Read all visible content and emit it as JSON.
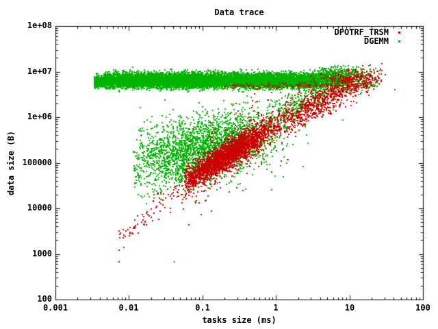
{
  "chart_data": {
    "type": "scatter",
    "title": "Data trace",
    "xlabel": "tasks size (ms)",
    "ylabel": "data size (B)",
    "xscale": "log",
    "yscale": "log",
    "xlim": [
      0.001,
      100
    ],
    "ylim": [
      100,
      100000000
    ],
    "grid": false,
    "xticks": [
      "0.001",
      "0.01",
      "0.1",
      "1",
      "10",
      "100"
    ],
    "yticks_top_to_bottom": [
      "1e+08",
      "1e+07",
      "1e+06",
      "100000",
      "10000",
      "1000",
      "100"
    ],
    "legend": {
      "position": "top-right-inside",
      "entries": [
        {
          "label": "DPOTRF_TRSM",
          "color": "#cc0000",
          "marker": "dot"
        },
        {
          "label": "DGEMM",
          "color": "#00b400",
          "marker": "dot"
        }
      ]
    },
    "series": [
      {
        "name": "DGEMM",
        "color": "#00b400",
        "marker": "dot",
        "trend_log10": [
          [
            -0.2,
            5.9
          ],
          [
            0.95,
            6.76
          ]
        ],
        "clusters": [
          {
            "kind": "bandx",
            "n": 13000,
            "x": [
              -2.35,
              0.55
            ],
            "cy": 6.82,
            "sy": 0.075,
            "clipy": [
              6.55,
              7.12
            ]
          },
          {
            "kind": "bandx",
            "n": 350,
            "x": [
              -2.48,
              -2.35
            ],
            "cy": 6.8,
            "sy": 0.06,
            "clipy": [
              6.6,
              7.0
            ]
          },
          {
            "kind": "gauss",
            "n": 900,
            "cx": 0.55,
            "cy": 6.86,
            "sx": 0.35,
            "sy": 0.11,
            "corr": 0,
            "clipx": [
              0.55,
              1.42
            ],
            "clipy": [
              6.5,
              7.15
            ]
          },
          {
            "kind": "gauss",
            "n": 2600,
            "cx": -1.05,
            "cy": 5.3,
            "sx": 0.52,
            "sy": 0.42,
            "corr": 0.45,
            "clipx": [
              -1.95,
              0.9
            ],
            "clipy": [
              4.05,
              6.5
            ]
          },
          {
            "kind": "curve",
            "n": 300,
            "mx": 0.35,
            "sx": 0.3,
            "clipx": [
              -0.15,
              0.95
            ],
            "sy": 0.18
          },
          {
            "kind": "points",
            "pts": [
              [
                0.041,
                700
              ],
              [
                41,
                4200000
              ]
            ]
          }
        ]
      },
      {
        "name": "DPOTRF_TRSM",
        "color": "#cc0000",
        "marker": "dot",
        "trend_log10": [
          [
            -2.15,
            3.3
          ],
          [
            -1.25,
            4.6
          ],
          [
            0.1,
            5.95
          ],
          [
            1.45,
            7.03
          ]
        ],
        "clusters": [
          {
            "kind": "curve",
            "n": 90,
            "xdist": "uniform",
            "x": [
              -2.15,
              -1.25
            ],
            "sy": 0.13
          },
          {
            "kind": "curve",
            "n": 2600,
            "mx": -0.68,
            "sx": 0.34,
            "clipx": [
              -1.25,
              0.1
            ],
            "sy": 0.15
          },
          {
            "kind": "curve",
            "n": 300,
            "mx": -0.6,
            "sx": 0.4,
            "clipx": [
              -1.3,
              0.15
            ],
            "sy": 0.38
          },
          {
            "kind": "curve",
            "n": 700,
            "mx": 0.5,
            "sx": 0.4,
            "clipx": [
              0.1,
              1.48
            ],
            "sy": 0.18
          },
          {
            "kind": "bandx",
            "n": 130,
            "x": [
              -0.75,
              1.3
            ],
            "cy": 6.7,
            "sy": 0.035,
            "clipy": [
              6.6,
              6.8
            ]
          },
          {
            "kind": "gauss",
            "n": 200,
            "cx": 1.0,
            "cy": 6.85,
            "sx": 0.25,
            "sy": 0.1,
            "corr": 0,
            "clipx": [
              0.45,
              1.45
            ],
            "clipy": [
              6.55,
              7.1
            ]
          },
          {
            "kind": "points",
            "pts": [
              [
                0.0072,
                700
              ],
              [
                0.0075,
                3000
              ],
              [
                0.009,
                3300
              ]
            ]
          }
        ]
      }
    ]
  }
}
